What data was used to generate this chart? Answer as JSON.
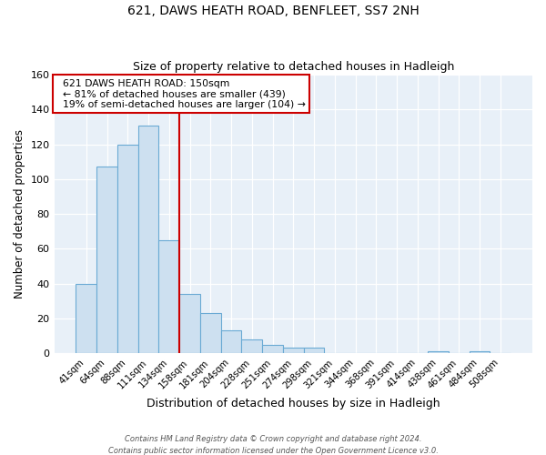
{
  "title": "621, DAWS HEATH ROAD, BENFLEET, SS7 2NH",
  "subtitle": "Size of property relative to detached houses in Hadleigh",
  "xlabel": "Distribution of detached houses by size in Hadleigh",
  "ylabel": "Number of detached properties",
  "bar_labels": [
    "41sqm",
    "64sqm",
    "88sqm",
    "111sqm",
    "134sqm",
    "158sqm",
    "181sqm",
    "204sqm",
    "228sqm",
    "251sqm",
    "274sqm",
    "298sqm",
    "321sqm",
    "344sqm",
    "368sqm",
    "391sqm",
    "414sqm",
    "438sqm",
    "461sqm",
    "484sqm",
    "508sqm"
  ],
  "bar_values": [
    40,
    107,
    120,
    131,
    65,
    34,
    23,
    13,
    8,
    5,
    3,
    3,
    0,
    0,
    0,
    0,
    0,
    1,
    0,
    1,
    0
  ],
  "bar_color": "#cde0f0",
  "bar_edge_color": "#6aaad4",
  "vline_color": "#cc0000",
  "vline_pos": 4.5,
  "annotation_title": "621 DAWS HEATH ROAD: 150sqm",
  "annotation_line1": "← 81% of detached houses are smaller (439)",
  "annotation_line2": "19% of semi-detached houses are larger (104) →",
  "annotation_box_color": "#ffffff",
  "annotation_box_edge": "#cc0000",
  "ylim": [
    0,
    160
  ],
  "yticks": [
    0,
    20,
    40,
    60,
    80,
    100,
    120,
    140,
    160
  ],
  "bg_color": "#e8f0f8",
  "grid_color": "#ffffff",
  "footer1": "Contains HM Land Registry data © Crown copyright and database right 2024.",
  "footer2": "Contains public sector information licensed under the Open Government Licence v3.0."
}
